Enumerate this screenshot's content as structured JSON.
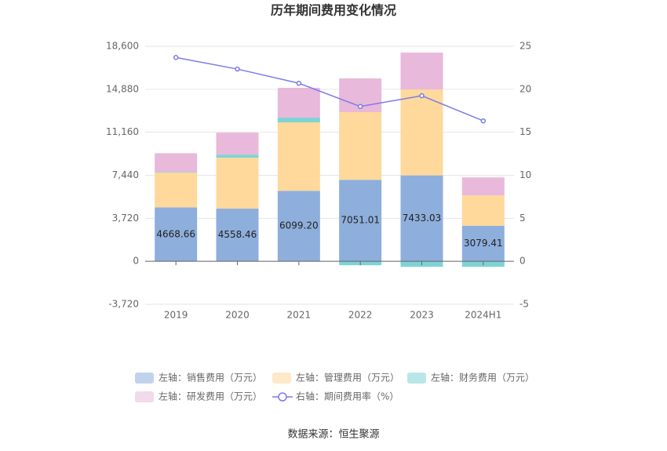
{
  "chart_data": {
    "type": "bar",
    "title": "历年期间费用变化情况",
    "categories": [
      "2019",
      "2020",
      "2021",
      "2022",
      "2023",
      "2024H1"
    ],
    "ylim": [
      -3720,
      18600
    ],
    "yticks": [
      {
        "value": -3720,
        "label": "-3,720"
      },
      0,
      {
        "value": 3720,
        "label": "3,720"
      },
      {
        "value": 7440,
        "label": "7,440"
      },
      {
        "value": 11160,
        "label": "11,160"
      },
      {
        "value": 14880,
        "label": "14,880"
      },
      {
        "value": 18600,
        "label": "18,600"
      }
    ],
    "y2lim": [
      -5,
      25
    ],
    "y2ticks": [
      -5,
      0,
      5,
      10,
      15,
      20,
      25
    ],
    "grid": true,
    "stacked": true,
    "series": [
      {
        "name": "左轴：销售费用（万元）",
        "color": "#8eaedc",
        "values": [
          4668.66,
          4558.46,
          6099.2,
          7051.01,
          7433.03,
          3079.41
        ],
        "value_labels": [
          "4668.66",
          "4558.46",
          "6099.20",
          "7051.01",
          "7433.03",
          "3079.41"
        ]
      },
      {
        "name": "左轴：管理费用（万元）",
        "color": "#fed99b",
        "values": [
          3000,
          4400,
          5920,
          5850,
          7430,
          2620
        ]
      },
      {
        "name": "左轴：财务费用（万元）",
        "color": "#7fd3d6",
        "values": [
          50,
          270,
          410,
          -340,
          -475,
          -475
        ]
      },
      {
        "name": "左轴：研发费用（万元）",
        "color": "#e8b9da",
        "values": [
          1630,
          1900,
          2580,
          2920,
          3190,
          1560
        ]
      },
      {
        "name": "右轴：期间费用率（%）",
        "color": "#7b7bea",
        "type": "line",
        "axis": "y2",
        "values": [
          23.7,
          22.35,
          20.7,
          18.0,
          19.25,
          16.33
        ]
      }
    ],
    "source": "数据来源：恒生聚源"
  }
}
